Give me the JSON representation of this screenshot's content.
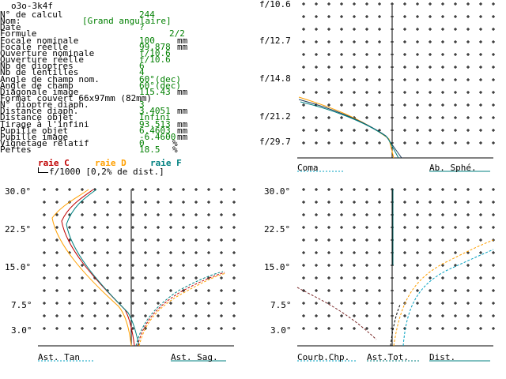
{
  "window": {
    "title": "o3o-3k4f"
  },
  "colors": {
    "black": "#000000",
    "green": "#007f00",
    "red": "#c00000",
    "orange": "#ffa000",
    "teal": "#008080",
    "blue_dark": "#204060"
  },
  "params": [
    {
      "key": "N° de calcul",
      "value": "244",
      "unit": ""
    },
    {
      "key": "Nom:",
      "value": "[Grand angulaire]",
      "unit": ""
    },
    {
      "key": "Date",
      "value": "?",
      "unit": ""
    },
    {
      "key": "Formule",
      "value": "2/2",
      "unit": ""
    },
    {
      "key": "Focale nominale",
      "value": "100",
      "unit": "mm"
    },
    {
      "key": "Focale réelle",
      "value": "99.878",
      "unit": "mm"
    },
    {
      "key": "Ouverture nominale",
      "value": "f/10.6",
      "unit": ""
    },
    {
      "key": "Ouverture réelle",
      "value": "f/10.6",
      "unit": ""
    },
    {
      "key": "Nb de dioptres",
      "value": "6",
      "unit": ""
    },
    {
      "key": "Nb de lentilles",
      "value": "4",
      "unit": ""
    },
    {
      "key": "Angle de champ nom.",
      "value": "60°(dec)",
      "unit": ""
    },
    {
      "key": "Angle de champ",
      "value": "60°(dec)",
      "unit": ""
    },
    {
      "key": "Diagonale image",
      "value": "115.43",
      "unit": "mm"
    },
    {
      "key": "Format couvert 66x97mm (82mm)",
      "value": "",
      "unit": ""
    },
    {
      "key": "N° dioptre diaph.",
      "value": "3",
      "unit": ""
    },
    {
      "key": "Distance diaph.",
      "value": "3.4051",
      "unit": "mm"
    },
    {
      "key": "Distance objet",
      "value": "Infini",
      "unit": ""
    },
    {
      "key": "Tirage à l'infini",
      "value": "93.513",
      "unit": "mm"
    },
    {
      "key": "Pupille objet",
      "value": "6.4603",
      "unit": "mm"
    },
    {
      "key": "Pupille image",
      "value": "-6.4600",
      "unit": "mm"
    },
    {
      "key": "Vignetage relatif",
      "value": "0",
      "unit": "%"
    },
    {
      "key": "Pertes",
      "value": "18.5",
      "unit": "%"
    }
  ],
  "legend": {
    "raie_c": "raie C",
    "raie_d": "raie D",
    "raie_f": "raie F",
    "scale_note": "f/1000 [0,2% de dist.]"
  },
  "panel_tr": {
    "ylabels": [
      "f/10.6",
      "f/12.7",
      "f/14.8",
      "f/21.2",
      "f/29.7"
    ],
    "label_left": "Coma",
    "label_right": "Ab. Sphé."
  },
  "panel_bl": {
    "ylabels": [
      "30.0°",
      "22.5°",
      "15.0°",
      "7.5°",
      "3.0°"
    ],
    "label_left": "Ast. Tan",
    "label_right": "Ast. Sag."
  },
  "panel_br": {
    "ylabels": [
      "30.0°",
      "22.5°",
      "15.0°",
      "7.5°",
      "3.0°"
    ],
    "label_left": "Courb.Chp.",
    "label_mid": "Ast.Tot.",
    "label_right": "Dist."
  }
}
